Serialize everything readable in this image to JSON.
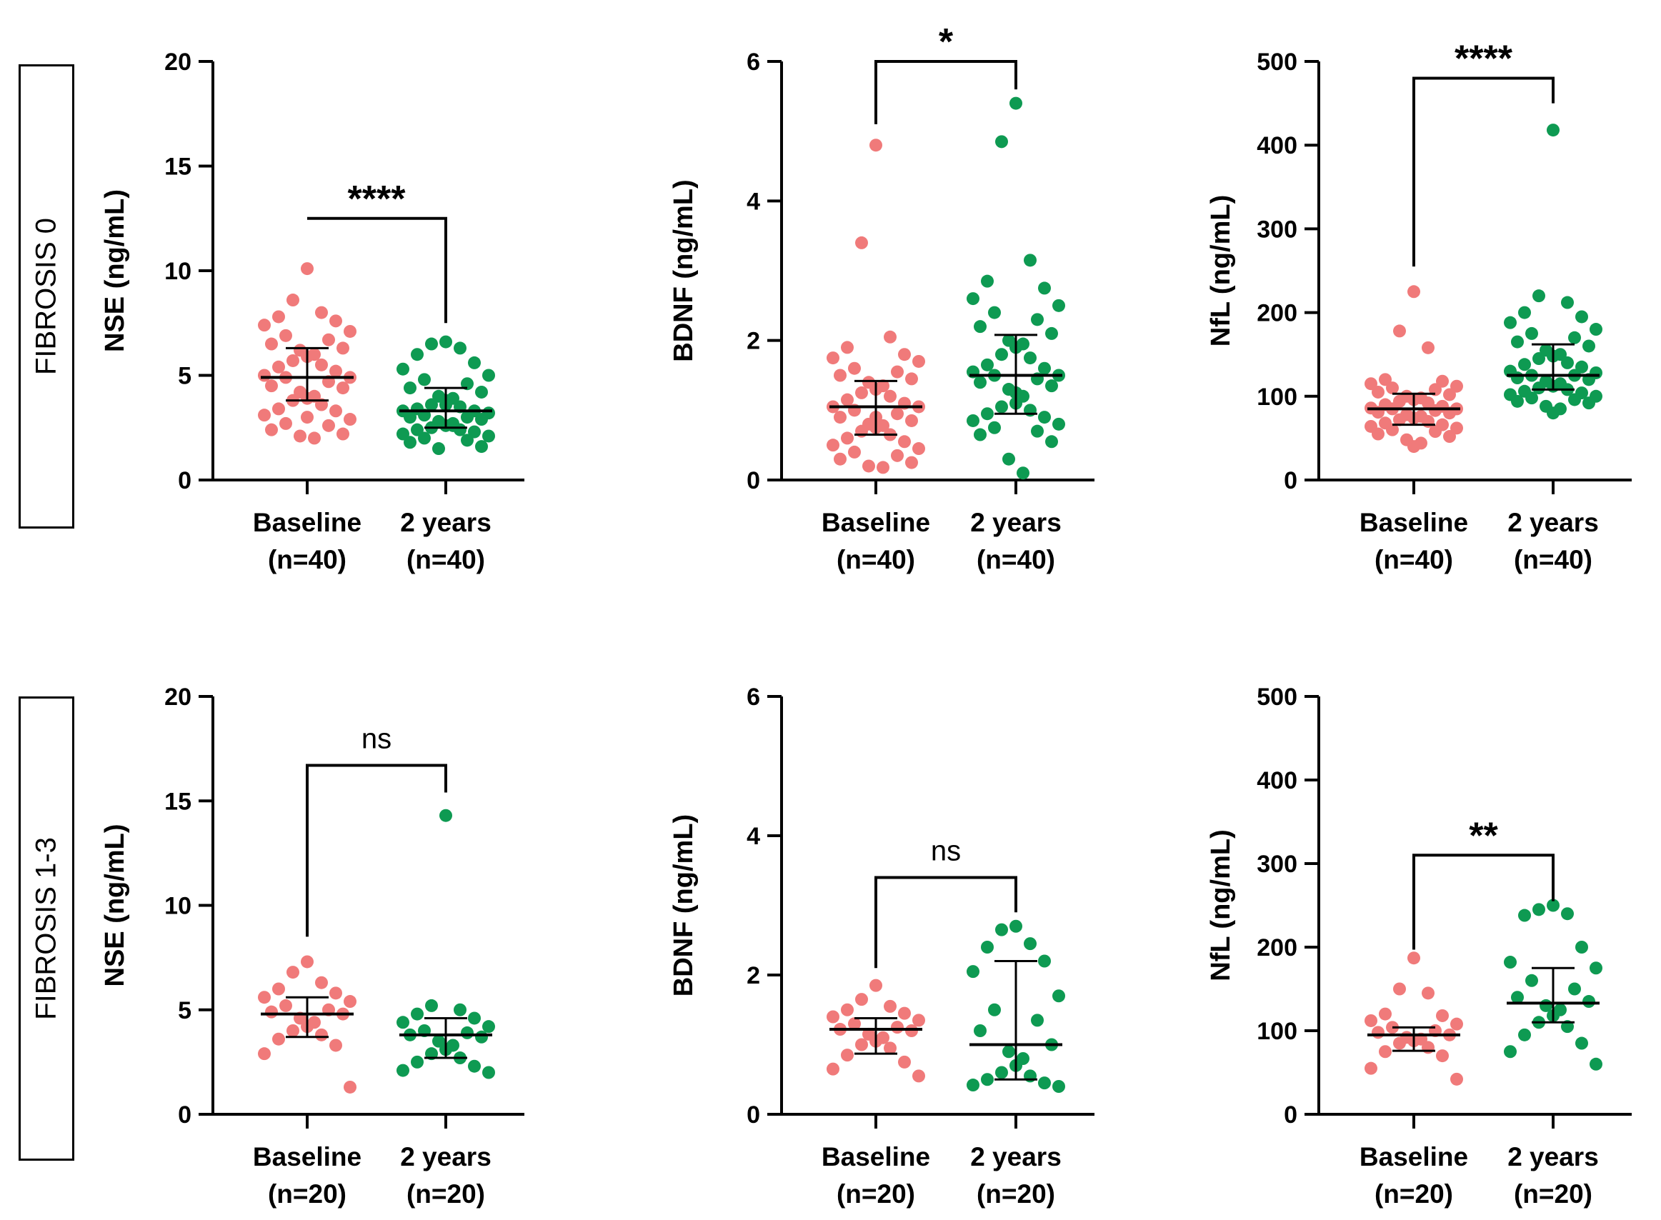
{
  "rows": [
    {
      "label": "FIBROSIS 0"
    },
    {
      "label": "FIBROSIS 1-3"
    }
  ],
  "colors": {
    "baseline": "#f07a7a",
    "two_years": "#0e9a52",
    "axis": "#000000"
  },
  "chart_data": [
    {
      "type": "scatter",
      "row": 0,
      "ylabel": "NSE (ng/mL)",
      "ylim": [
        0,
        20
      ],
      "yticks": [
        0,
        5,
        10,
        15,
        20
      ],
      "yticklabels": [
        "0",
        "5",
        "10",
        "15",
        "20"
      ],
      "significance": "****",
      "significance_style": "bold",
      "bracket_left_y": 12.5,
      "bracket_right_y": 7.5,
      "bracket_top_y": 12.5,
      "groups": [
        {
          "name": "Baseline",
          "n_label": "(n=40)",
          "median": 4.9,
          "q1": 3.8,
          "q3": 6.3,
          "values": [
            10.1,
            8.6,
            8.0,
            7.8,
            7.6,
            7.4,
            7.1,
            6.9,
            6.7,
            6.5,
            6.3,
            6.2,
            6.0,
            5.9,
            5.7,
            5.5,
            5.4,
            5.2,
            5.0,
            4.9,
            4.9,
            4.7,
            4.5,
            4.4,
            4.2,
            4.0,
            3.9,
            3.8,
            3.6,
            3.4,
            3.3,
            3.1,
            2.9,
            2.7,
            2.6,
            2.4,
            2.2,
            2.1,
            2.0,
            3.0
          ]
        },
        {
          "name": "2 years",
          "n_label": "(n=40)",
          "median": 3.3,
          "q1": 2.5,
          "q3": 4.4,
          "values": [
            6.6,
            6.5,
            6.3,
            6.0,
            5.6,
            5.3,
            5.0,
            4.8,
            4.6,
            4.4,
            4.2,
            4.0,
            3.9,
            3.8,
            3.6,
            3.5,
            3.4,
            3.3,
            3.3,
            3.2,
            3.1,
            3.0,
            3.0,
            2.9,
            2.8,
            2.7,
            2.6,
            2.5,
            2.4,
            2.4,
            2.3,
            2.2,
            2.1,
            2.0,
            1.9,
            1.8,
            1.6,
            1.5,
            2.6,
            3.6
          ]
        }
      ]
    },
    {
      "type": "scatter",
      "row": 0,
      "ylabel": "BDNF (ng/mL)",
      "ylim": [
        0,
        6
      ],
      "yticks": [
        0,
        2,
        4,
        6
      ],
      "yticklabels": [
        "0",
        "2",
        "4",
        "6"
      ],
      "significance": "*",
      "significance_style": "bold",
      "bracket_left_y": 5.1,
      "bracket_right_y": 5.6,
      "bracket_top_y": 6.0,
      "groups": [
        {
          "name": "Baseline",
          "n_label": "(n=40)",
          "median": 1.05,
          "q1": 0.65,
          "q3": 1.42,
          "values": [
            4.8,
            3.4,
            2.05,
            1.9,
            1.8,
            1.75,
            1.7,
            1.6,
            1.55,
            1.5,
            1.45,
            1.4,
            1.35,
            1.3,
            1.25,
            1.2,
            1.15,
            1.1,
            1.05,
            1.05,
            1.0,
            0.95,
            0.9,
            0.85,
            0.8,
            0.78,
            0.75,
            0.7,
            0.65,
            0.6,
            0.55,
            0.5,
            0.45,
            0.4,
            0.35,
            0.3,
            0.25,
            0.2,
            0.18,
            0.9
          ]
        },
        {
          "name": "2 years",
          "n_label": "(n=40)",
          "median": 1.5,
          "q1": 0.95,
          "q3": 2.08,
          "values": [
            5.4,
            4.85,
            3.15,
            2.85,
            2.75,
            2.6,
            2.5,
            2.4,
            2.3,
            2.2,
            2.1,
            2.0,
            1.95,
            1.9,
            1.8,
            1.75,
            1.65,
            1.6,
            1.55,
            1.5,
            1.5,
            1.45,
            1.4,
            1.35,
            1.3,
            1.2,
            1.1,
            1.05,
            1.0,
            0.95,
            0.9,
            0.85,
            0.8,
            0.75,
            0.7,
            0.65,
            0.55,
            0.3,
            0.1,
            1.25
          ]
        }
      ]
    },
    {
      "type": "scatter",
      "row": 0,
      "ylabel": "NfL (ng/mL)",
      "ylim": [
        0,
        500
      ],
      "yticks": [
        0,
        100,
        200,
        300,
        400,
        500
      ],
      "yticklabels": [
        "0",
        "100",
        "200",
        "300",
        "400",
        "500"
      ],
      "significance": "****",
      "significance_style": "bold",
      "bracket_left_y": 255,
      "bracket_right_y": 450,
      "bracket_top_y": 480,
      "groups": [
        {
          "name": "Baseline",
          "n_label": "(n=40)",
          "median": 85,
          "q1": 66,
          "q3": 103,
          "values": [
            225,
            178,
            158,
            120,
            118,
            115,
            112,
            110,
            108,
            105,
            102,
            100,
            98,
            96,
            94,
            92,
            90,
            88,
            86,
            85,
            85,
            83,
            81,
            80,
            78,
            76,
            74,
            72,
            70,
            68,
            66,
            64,
            62,
            60,
            58,
            55,
            52,
            48,
            44,
            40
          ]
        },
        {
          "name": "2 years",
          "n_label": "(n=40)",
          "median": 125,
          "q1": 108,
          "q3": 162,
          "values": [
            418,
            220,
            212,
            200,
            195,
            188,
            180,
            175,
            170,
            165,
            160,
            155,
            150,
            148,
            145,
            140,
            138,
            135,
            130,
            128,
            125,
            125,
            122,
            120,
            118,
            115,
            112,
            110,
            108,
            106,
            104,
            102,
            100,
            98,
            96,
            94,
            92,
            88,
            85,
            80
          ]
        }
      ]
    },
    {
      "type": "scatter",
      "row": 1,
      "ylabel": "NSE (ng/mL)",
      "ylim": [
        0,
        20
      ],
      "yticks": [
        0,
        5,
        10,
        15,
        20
      ],
      "yticklabels": [
        "0",
        "5",
        "10",
        "15",
        "20"
      ],
      "significance": "ns",
      "significance_style": "normal",
      "bracket_left_y": 8.5,
      "bracket_right_y": 15.4,
      "bracket_top_y": 16.7,
      "groups": [
        {
          "name": "Baseline",
          "n_label": "(n=20)",
          "median": 4.8,
          "q1": 3.7,
          "q3": 5.6,
          "values": [
            7.3,
            6.8,
            6.3,
            6.0,
            5.8,
            5.6,
            5.4,
            5.2,
            5.0,
            4.9,
            4.8,
            4.6,
            4.4,
            4.2,
            4.0,
            3.8,
            3.6,
            3.3,
            2.9,
            1.3
          ]
        },
        {
          "name": "2 years",
          "n_label": "(n=20)",
          "median": 3.8,
          "q1": 2.7,
          "q3": 4.6,
          "values": [
            14.3,
            5.2,
            5.0,
            4.8,
            4.6,
            4.4,
            4.2,
            4.0,
            3.9,
            3.8,
            3.7,
            3.5,
            3.3,
            3.1,
            2.9,
            2.7,
            2.5,
            2.3,
            2.1,
            2.0
          ]
        }
      ]
    },
    {
      "type": "scatter",
      "row": 1,
      "ylabel": "BDNF (ng/mL)",
      "ylim": [
        0,
        6
      ],
      "yticks": [
        0,
        2,
        4,
        6
      ],
      "yticklabels": [
        "0",
        "2",
        "4",
        "6"
      ],
      "significance": "ns",
      "significance_style": "normal",
      "bracket_left_y": 2.1,
      "bracket_right_y": 2.9,
      "bracket_top_y": 3.4,
      "groups": [
        {
          "name": "Baseline",
          "n_label": "(n=20)",
          "median": 1.22,
          "q1": 0.87,
          "q3": 1.38,
          "values": [
            1.85,
            1.65,
            1.55,
            1.5,
            1.45,
            1.4,
            1.35,
            1.3,
            1.25,
            1.22,
            1.2,
            1.15,
            1.1,
            1.05,
            1.0,
            0.95,
            0.85,
            0.75,
            0.65,
            0.55
          ]
        },
        {
          "name": "2 years",
          "n_label": "(n=20)",
          "median": 1.0,
          "q1": 0.5,
          "q3": 2.2,
          "values": [
            2.7,
            2.65,
            2.45,
            2.4,
            2.2,
            2.05,
            1.7,
            1.5,
            1.35,
            1.2,
            1.0,
            0.9,
            0.8,
            0.7,
            0.6,
            0.55,
            0.5,
            0.45,
            0.42,
            0.4
          ]
        }
      ]
    },
    {
      "type": "scatter",
      "row": 1,
      "ylabel": "NfL (ng/mL)",
      "ylim": [
        0,
        500
      ],
      "yticks": [
        0,
        100,
        200,
        300,
        400,
        500
      ],
      "yticklabels": [
        "0",
        "100",
        "200",
        "300",
        "400",
        "500"
      ],
      "significance": "**",
      "significance_style": "bold",
      "bracket_left_y": 197,
      "bracket_right_y": 255,
      "bracket_top_y": 310,
      "groups": [
        {
          "name": "Baseline",
          "n_label": "(n=20)",
          "median": 95,
          "q1": 76,
          "q3": 104,
          "values": [
            187,
            150,
            145,
            120,
            118,
            112,
            108,
            104,
            100,
            98,
            95,
            92,
            90,
            88,
            85,
            80,
            75,
            70,
            55,
            42
          ]
        },
        {
          "name": "2 years",
          "n_label": "(n=20)",
          "median": 133,
          "q1": 110,
          "q3": 175,
          "values": [
            250,
            245,
            240,
            238,
            200,
            182,
            175,
            160,
            150,
            140,
            135,
            130,
            125,
            118,
            110,
            105,
            95,
            85,
            75,
            60
          ]
        }
      ]
    }
  ]
}
